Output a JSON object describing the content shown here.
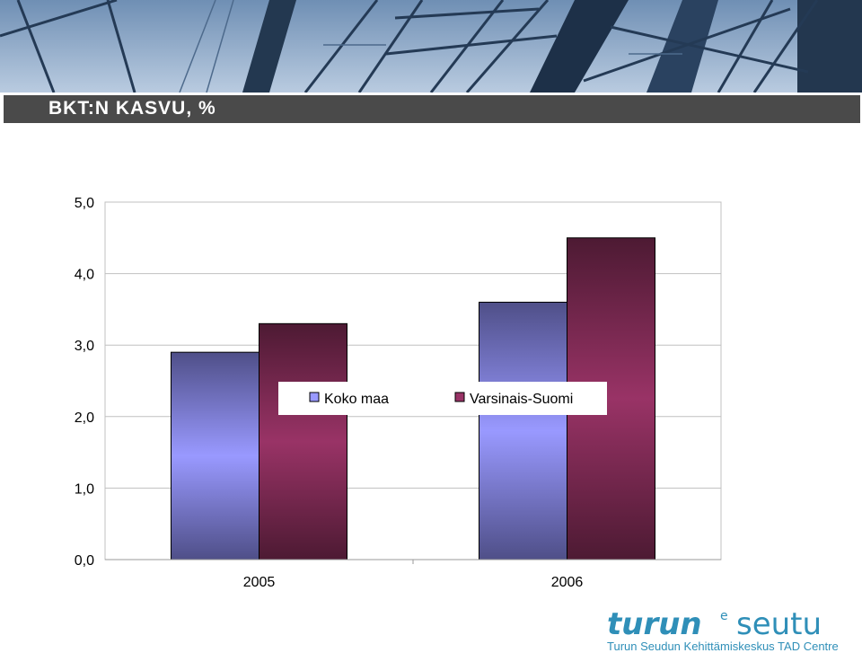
{
  "slide": {
    "title": "BKT:N KASVU, %"
  },
  "logo": {
    "wordmark_left": "turun",
    "wordmark_sup": "e",
    "wordmark_right": "seutu",
    "tagline": "Turun Seudun Kehittämiskeskus TAD Centre",
    "color": "#2f8fb8"
  },
  "chart_data": {
    "type": "bar",
    "categories": [
      "2005",
      "2006"
    ],
    "series": [
      {
        "name": "Koko maa",
        "values": [
          2.9,
          3.6
        ],
        "color": "#9999ff"
      },
      {
        "name": "Varsinais-Suomi",
        "values": [
          3.3,
          4.5
        ],
        "color": "#993366"
      }
    ],
    "yticks": [
      "0,0",
      "1,0",
      "2,0",
      "3,0",
      "4,0",
      "5,0"
    ],
    "ylim": [
      0,
      5
    ],
    "grid": true,
    "legend": "center"
  }
}
